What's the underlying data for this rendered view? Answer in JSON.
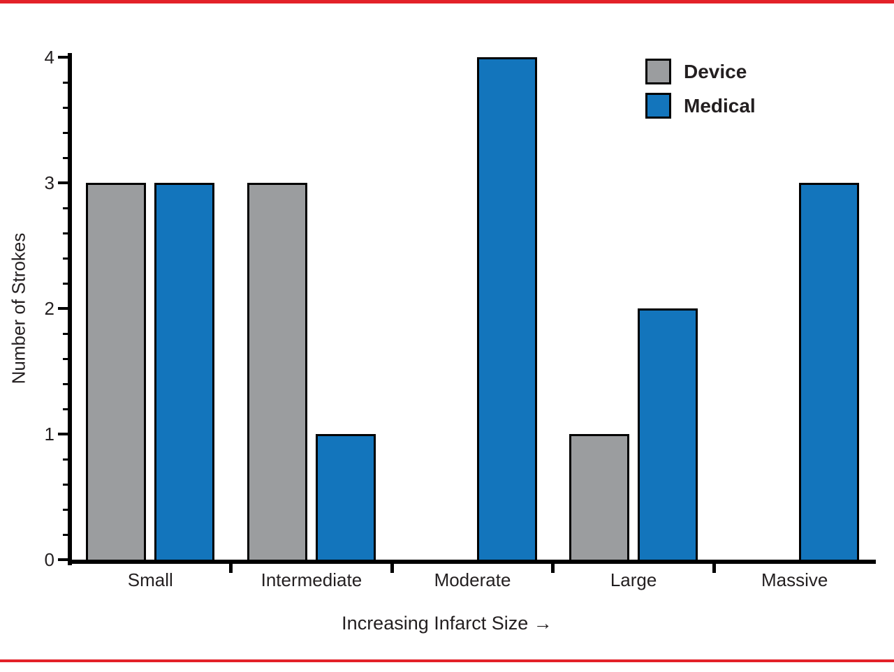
{
  "page": {
    "background": "#ffffff",
    "rule_color": "#e32129"
  },
  "chart_data": {
    "type": "bar",
    "title": "",
    "xlabel": "Increasing Infarct Size →",
    "ylabel": "Number of Strokes",
    "categories": [
      "Small",
      "Intermediate",
      "Moderate",
      "Large",
      "Massive"
    ],
    "series": [
      {
        "name": "Device",
        "color": "#9b9d9f",
        "values": [
          3,
          3,
          0,
          1,
          0
        ]
      },
      {
        "name": "Medical",
        "color": "#1375bc",
        "values": [
          3,
          1,
          4,
          2,
          3
        ]
      }
    ],
    "ylim": [
      0,
      4
    ],
    "yticks": [
      0,
      1,
      2,
      3,
      4
    ],
    "minor_tick_step": 0.2,
    "grid": false,
    "legend_position": "top-right",
    "bar_outline_color": "#000000",
    "axis_color": "#000000",
    "text_color": "#231f20"
  }
}
